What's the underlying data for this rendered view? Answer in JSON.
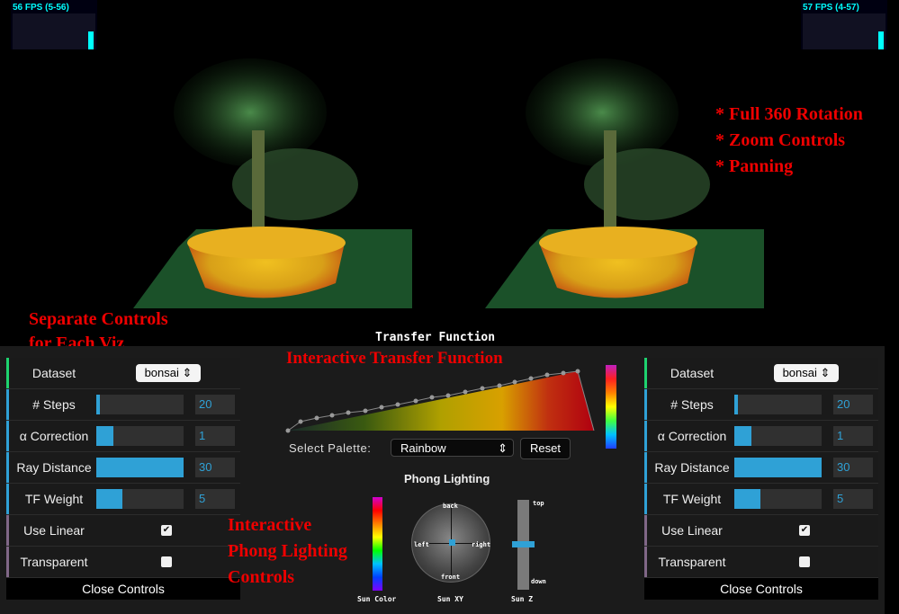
{
  "fps_left": {
    "label": "56 FPS (5-56)",
    "level": 0.55
  },
  "fps_right": {
    "label": "57 FPS (4-57)",
    "level": 0.55
  },
  "annotations": {
    "features": [
      "* Full 360 Rotation",
      "* Zoom Controls",
      "* Panning"
    ],
    "separate_line1": "Separate Controls",
    "separate_line2": "for Each Viz",
    "transfer": "Interactive Transfer Function",
    "phong_line1": "Interactive",
    "phong_line2": "Phong Lighting",
    "phong_line3": "Controls"
  },
  "left_gui": {
    "dataset_label": "Dataset",
    "dataset_value": "bonsai",
    "rows": [
      {
        "label": "# Steps",
        "value": "20",
        "fill": 0.04
      },
      {
        "label": "α Correction",
        "value": "1",
        "fill": 0.2
      },
      {
        "label": "Ray Distance",
        "value": "30",
        "fill": 1.0
      },
      {
        "label": "TF Weight",
        "value": "5",
        "fill": 0.3
      }
    ],
    "use_linear_label": "Use Linear",
    "use_linear_checked": true,
    "transparent_label": "Transparent",
    "transparent_checked": false,
    "close_label": "Close Controls"
  },
  "right_gui": {
    "dataset_label": "Dataset",
    "dataset_value": "bonsai",
    "rows": [
      {
        "label": "# Steps",
        "value": "20",
        "fill": 0.04
      },
      {
        "label": "α Correction",
        "value": "1",
        "fill": 0.2
      },
      {
        "label": "Ray Distance",
        "value": "30",
        "fill": 1.0
      },
      {
        "label": "TF Weight",
        "value": "5",
        "fill": 0.3
      }
    ],
    "use_linear_label": "Use Linear",
    "use_linear_checked": true,
    "transparent_label": "Transparent",
    "transparent_checked": false,
    "close_label": "Close Controls"
  },
  "transfer_function": {
    "title": "Transfer Function",
    "palette_label": "Select Palette:",
    "palette_value": "Rainbow",
    "reset_label": "Reset"
  },
  "phong": {
    "title": "Phong Lighting",
    "sun_color_label": "Sun Color",
    "sun_xy_label": "Sun XY",
    "sun_z_label": "Sun Z",
    "dir_back": "back",
    "dir_front": "front",
    "dir_left": "left",
    "dir_right": "right",
    "z_top": "top",
    "z_down": "down"
  },
  "colors": {
    "accent": "#2fa1d6",
    "annotation": "#e00000",
    "fps": "#00ffff"
  }
}
